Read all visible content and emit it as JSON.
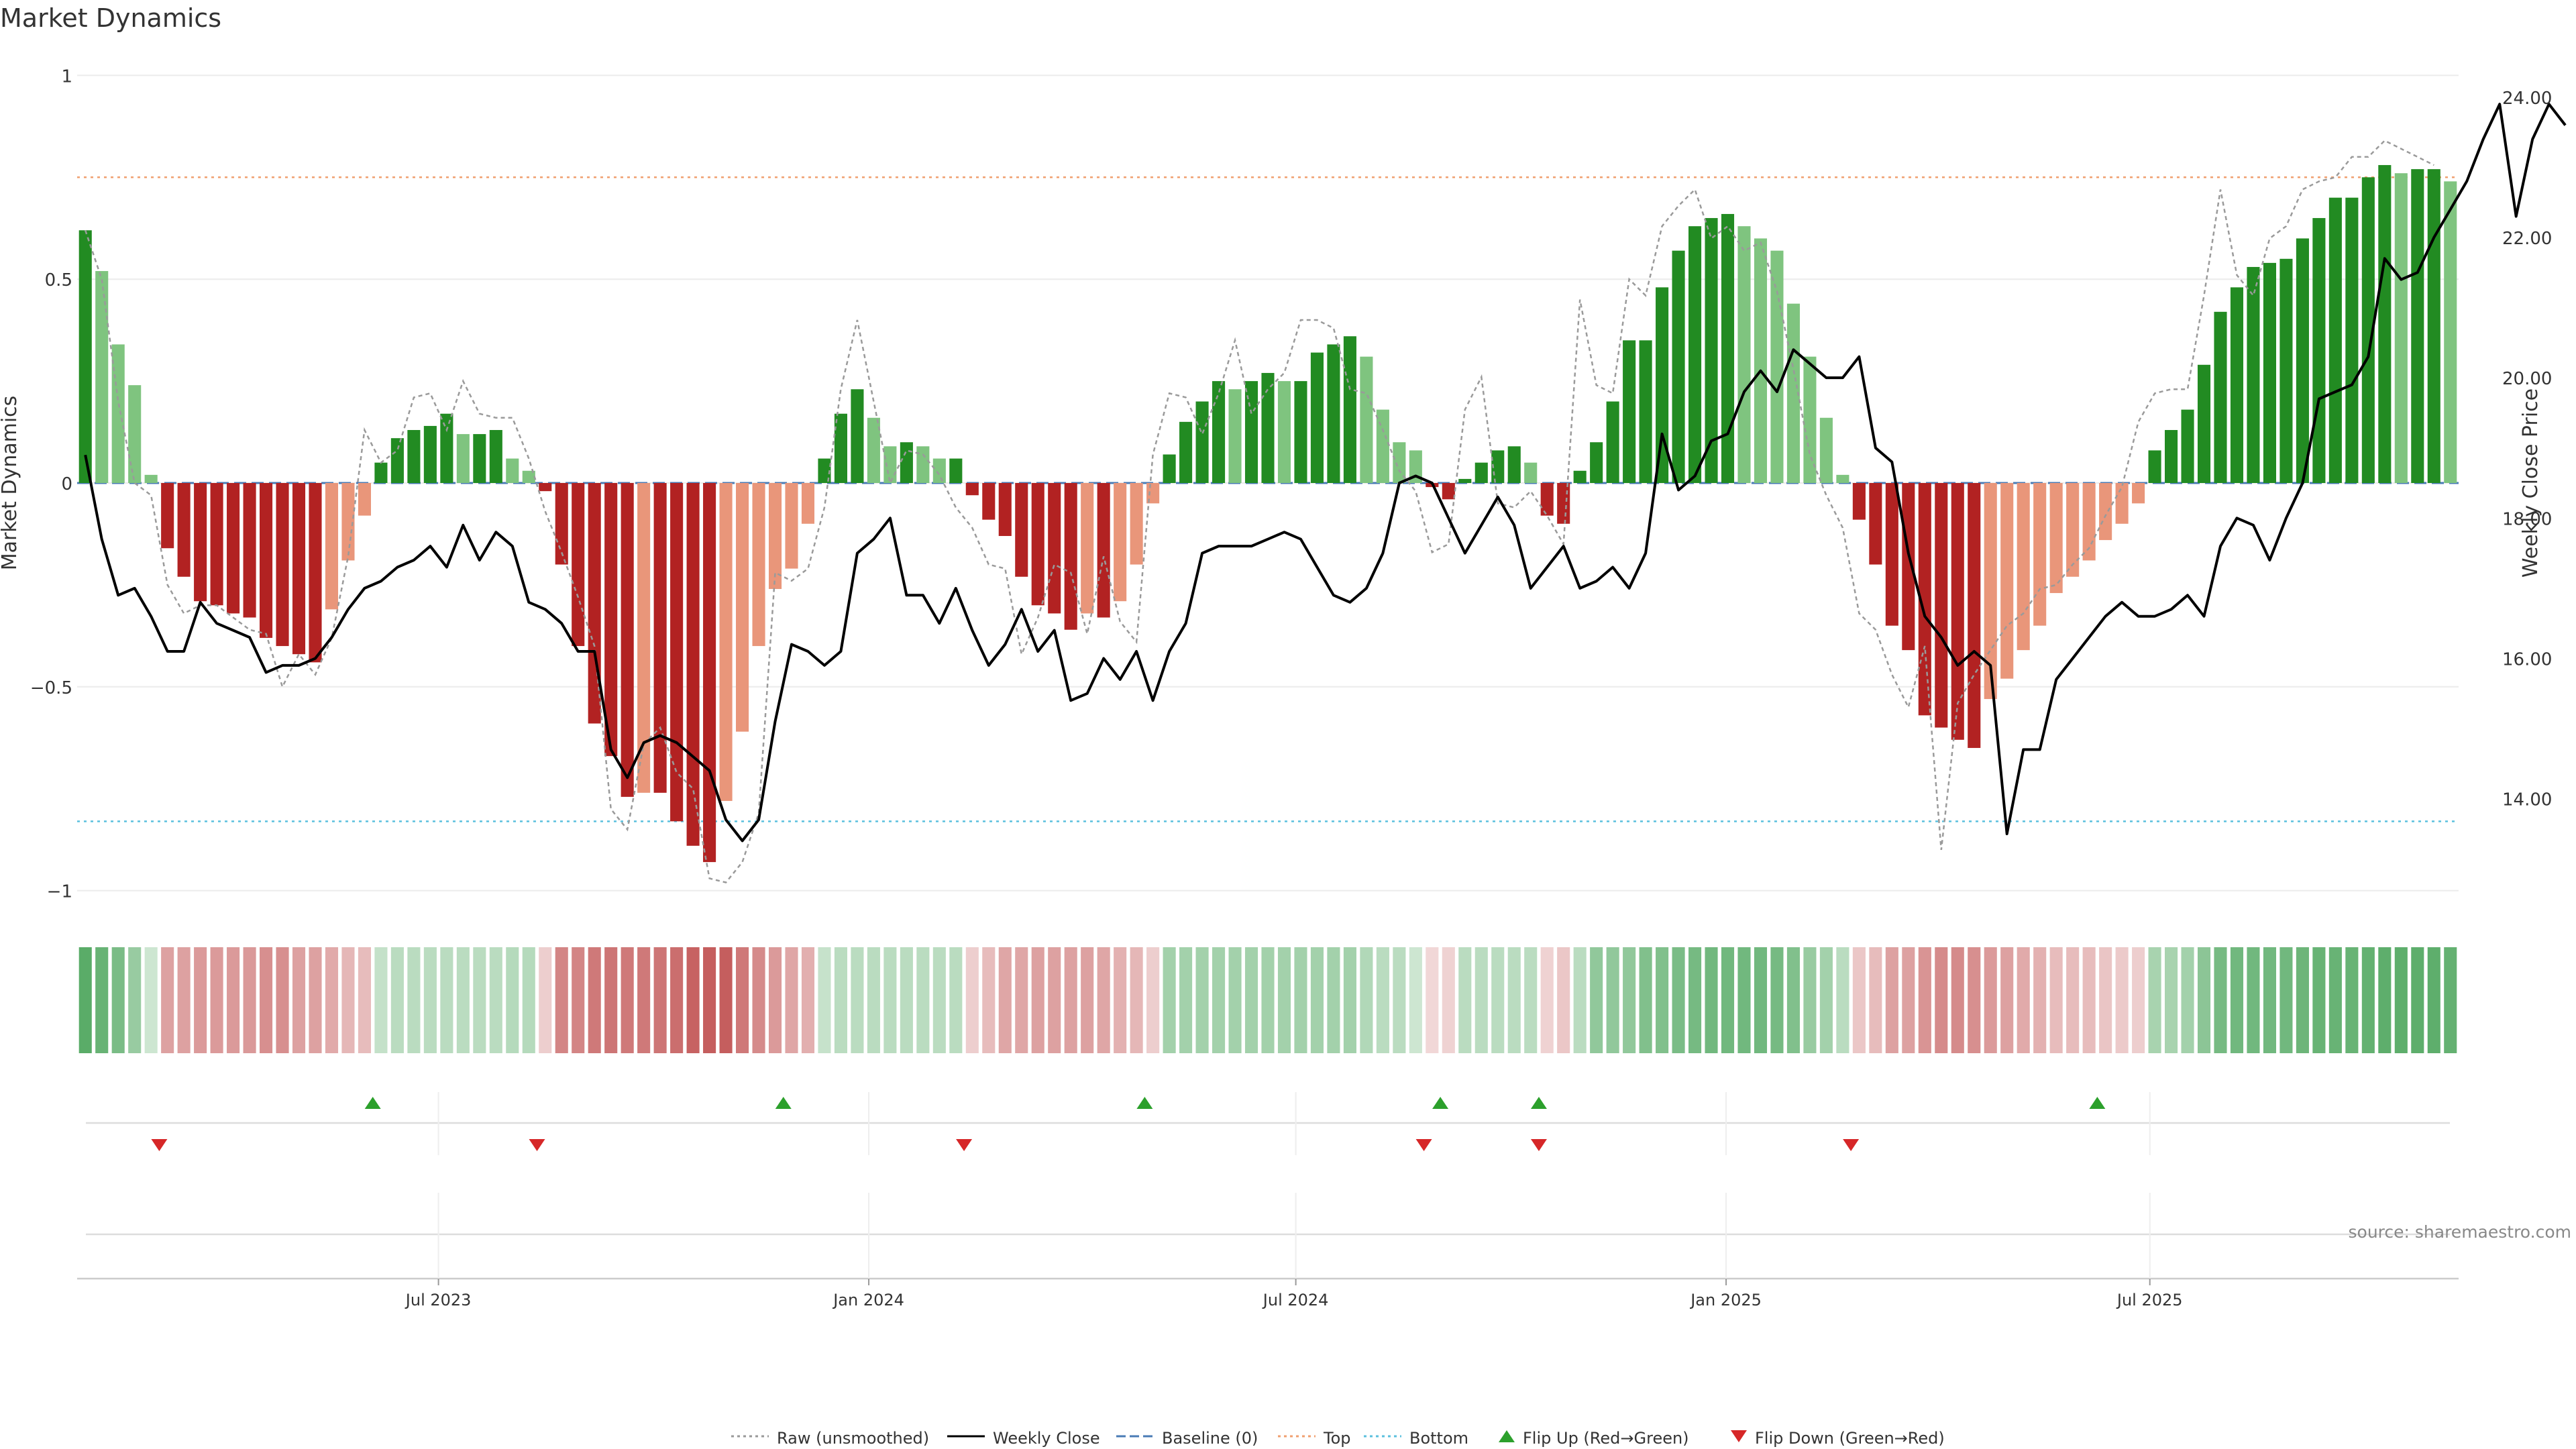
{
  "chart_data": {
    "type": "bar",
    "title": "Market Dynamics",
    "ylabel_left": "Market Dynamics",
    "ylabel_right": "Weekly Close Price",
    "left_ylim": [
      -1.05,
      1.05
    ],
    "right_ylim": [
      12.4,
      24.6
    ],
    "left_ticks": [
      "1",
      "0.5",
      "0",
      "−0.5",
      "−1"
    ],
    "left_tick_values": [
      1,
      0.5,
      0,
      -0.5,
      -1
    ],
    "right_ticks": [
      "24.00",
      "22.00",
      "20.00",
      "18.00",
      "16.00",
      "14.00"
    ],
    "right_tick_values": [
      24,
      22,
      20,
      18,
      16,
      14
    ],
    "x_ticks": [
      "Jul 2023",
      "Jan 2024",
      "Jul 2024",
      "Jan 2025",
      "Jul 2025"
    ],
    "x_tick_weeks": [
      21.5,
      47.7,
      73.7,
      99.9,
      125.7
    ],
    "baseline": 0,
    "top_level": 0.75,
    "bottom_level": -0.83,
    "bars": [
      0.62,
      0.52,
      0.34,
      0.24,
      0.02,
      -0.16,
      -0.23,
      -0.29,
      -0.3,
      -0.32,
      -0.33,
      -0.38,
      -0.4,
      -0.42,
      -0.44,
      -0.31,
      -0.19,
      -0.08,
      0.05,
      0.11,
      0.13,
      0.14,
      0.17,
      0.12,
      0.12,
      0.13,
      0.06,
      0.03,
      -0.02,
      -0.2,
      -0.4,
      -0.59,
      -0.67,
      -0.77,
      -0.76,
      -0.76,
      -0.83,
      -0.89,
      -0.93,
      -0.78,
      -0.61,
      -0.4,
      -0.26,
      -0.21,
      -0.1,
      0.06,
      0.17,
      0.23,
      0.16,
      0.09,
      0.1,
      0.09,
      0.06,
      0.06,
      -0.03,
      -0.09,
      -0.13,
      -0.23,
      -0.3,
      -0.32,
      -0.36,
      -0.32,
      -0.33,
      -0.29,
      -0.2,
      -0.05,
      0.07,
      0.15,
      0.2,
      0.25,
      0.23,
      0.25,
      0.27,
      0.25,
      0.25,
      0.32,
      0.34,
      0.36,
      0.31,
      0.18,
      0.1,
      0.08,
      -0.01,
      -0.04,
      0.01,
      0.05,
      0.08,
      0.09,
      0.05,
      -0.08,
      -0.1,
      0.03,
      0.1,
      0.2,
      0.35,
      0.35,
      0.48,
      0.57,
      0.63,
      0.65,
      0.66,
      0.63,
      0.6,
      0.57,
      0.44,
      0.31,
      0.16,
      0.02,
      -0.09,
      -0.2,
      -0.35,
      -0.41,
      -0.57,
      -0.6,
      -0.63,
      -0.65,
      -0.53,
      -0.48,
      -0.41,
      -0.35,
      -0.27,
      -0.23,
      -0.19,
      -0.14,
      -0.1,
      -0.05,
      0.08,
      0.13,
      0.18,
      0.29,
      0.42,
      0.48,
      0.53,
      0.54,
      0.55,
      0.6,
      0.65,
      0.7,
      0.7,
      0.75,
      0.78,
      0.76,
      0.77,
      0.77,
      0.74
    ],
    "raw": [
      0.62,
      0.5,
      0.2,
      0.0,
      -0.03,
      -0.25,
      -0.32,
      -0.3,
      -0.3,
      -0.33,
      -0.36,
      -0.37,
      -0.5,
      -0.42,
      -0.47,
      -0.38,
      -0.18,
      0.13,
      0.05,
      0.08,
      0.21,
      0.22,
      0.13,
      0.25,
      0.17,
      0.16,
      0.16,
      0.06,
      -0.07,
      -0.17,
      -0.28,
      -0.4,
      -0.8,
      -0.85,
      -0.64,
      -0.6,
      -0.71,
      -0.75,
      -0.97,
      -0.98,
      -0.93,
      -0.81,
      -0.22,
      -0.24,
      -0.21,
      -0.06,
      0.23,
      0.4,
      0.2,
      0.0,
      0.08,
      0.07,
      0.02,
      -0.06,
      -0.11,
      -0.2,
      -0.21,
      -0.42,
      -0.33,
      -0.2,
      -0.22,
      -0.37,
      -0.18,
      -0.34,
      -0.39,
      0.07,
      0.22,
      0.21,
      0.12,
      0.22,
      0.35,
      0.17,
      0.23,
      0.27,
      0.4,
      0.4,
      0.38,
      0.23,
      0.22,
      0.13,
      0.03,
      -0.02,
      -0.17,
      -0.15,
      0.18,
      0.26,
      -0.05,
      -0.06,
      -0.02,
      -0.08,
      -0.15,
      0.45,
      0.24,
      0.22,
      0.5,
      0.46,
      0.63,
      0.68,
      0.72,
      0.6,
      0.63,
      0.57,
      0.59,
      0.47,
      0.28,
      0.07,
      -0.03,
      -0.11,
      -0.32,
      -0.36,
      -0.47,
      -0.55,
      -0.4,
      -0.9,
      -0.54,
      -0.47,
      -0.41,
      -0.35,
      -0.32,
      -0.26,
      -0.25,
      -0.2,
      -0.16,
      -0.08,
      -0.01,
      0.15,
      0.22,
      0.23,
      0.23,
      0.46,
      0.72,
      0.51,
      0.46,
      0.6,
      0.63,
      0.72,
      0.74,
      0.75,
      0.8,
      0.8,
      0.84,
      0.82,
      0.8,
      0.78
    ],
    "close": [
      18.9,
      17.7,
      16.9,
      17.0,
      16.6,
      16.1,
      16.1,
      16.8,
      16.5,
      16.4,
      16.3,
      15.8,
      15.9,
      15.9,
      16.0,
      16.3,
      16.7,
      17.0,
      17.1,
      17.3,
      17.4,
      17.6,
      17.3,
      17.9,
      17.4,
      17.8,
      17.6,
      16.8,
      16.7,
      16.5,
      16.1,
      16.1,
      14.7,
      14.3,
      14.8,
      14.9,
      14.8,
      14.6,
      14.4,
      13.7,
      13.4,
      13.7,
      15.1,
      16.2,
      16.1,
      15.9,
      16.1,
      17.5,
      17.7,
      18.0,
      16.9,
      16.9,
      16.5,
      17.0,
      16.4,
      15.9,
      16.2,
      16.7,
      16.1,
      16.4,
      15.4,
      15.5,
      16.0,
      15.7,
      16.1,
      15.4,
      16.1,
      16.5,
      17.5,
      17.6,
      17.6,
      17.6,
      17.7,
      17.8,
      17.7,
      17.3,
      16.9,
      16.8,
      17.0,
      17.5,
      18.5,
      18.6,
      18.5,
      18.0,
      17.5,
      17.9,
      18.3,
      17.9,
      17.0,
      17.3,
      17.6,
      17.0,
      17.1,
      17.3,
      17.0,
      17.5,
      19.2,
      18.4,
      18.6,
      19.1,
      19.2,
      19.8,
      20.1,
      19.8,
      20.4,
      20.2,
      20.0,
      20.0,
      20.3,
      19.0,
      18.8,
      17.5,
      16.6,
      16.3,
      15.9,
      16.1,
      15.9,
      13.5,
      14.7,
      14.7,
      15.7,
      16.0,
      16.3,
      16.6,
      16.8,
      16.6,
      16.6,
      16.7,
      16.9,
      16.6,
      17.6,
      18.0,
      17.9,
      17.4,
      18.0,
      18.5,
      19.7,
      19.8,
      19.9,
      20.3,
      21.7,
      21.4,
      21.5,
      22.0,
      22.4,
      22.8,
      23.4,
      23.9,
      22.3,
      23.4,
      23.9,
      23.6
    ],
    "heat_strength": [
      0.72,
      0.66,
      0.58,
      0.45,
      0.22,
      0.42,
      0.42,
      0.45,
      0.45,
      0.45,
      0.46,
      0.5,
      0.5,
      0.42,
      0.42,
      0.38,
      0.32,
      0.3,
      0.26,
      0.3,
      0.3,
      0.3,
      0.3,
      0.3,
      0.3,
      0.3,
      0.32,
      0.32,
      0.22,
      0.55,
      0.55,
      0.6,
      0.62,
      0.6,
      0.6,
      0.62,
      0.65,
      0.7,
      0.72,
      0.72,
      0.6,
      0.52,
      0.45,
      0.4,
      0.36,
      0.25,
      0.3,
      0.3,
      0.3,
      0.3,
      0.3,
      0.3,
      0.3,
      0.3,
      0.22,
      0.3,
      0.4,
      0.4,
      0.42,
      0.42,
      0.42,
      0.42,
      0.4,
      0.35,
      0.32,
      0.22,
      0.4,
      0.4,
      0.4,
      0.4,
      0.4,
      0.4,
      0.4,
      0.4,
      0.4,
      0.4,
      0.4,
      0.4,
      0.34,
      0.3,
      0.3,
      0.22,
      0.18,
      0.2,
      0.3,
      0.3,
      0.3,
      0.3,
      0.3,
      0.2,
      0.25,
      0.3,
      0.48,
      0.48,
      0.48,
      0.55,
      0.55,
      0.58,
      0.6,
      0.62,
      0.62,
      0.62,
      0.62,
      0.6,
      0.55,
      0.45,
      0.4,
      0.3,
      0.25,
      0.3,
      0.42,
      0.42,
      0.48,
      0.52,
      0.52,
      0.5,
      0.45,
      0.42,
      0.38,
      0.35,
      0.3,
      0.3,
      0.3,
      0.26,
      0.24,
      0.22,
      0.38,
      0.38,
      0.4,
      0.5,
      0.6,
      0.62,
      0.62,
      0.62,
      0.62,
      0.64,
      0.66,
      0.66,
      0.66,
      0.68,
      0.7,
      0.7,
      0.7,
      0.7,
      0.68
    ],
    "flip_up_weeks": [
      17.5,
      42.5,
      64.5,
      82.5,
      88.5,
      122.5
    ],
    "flip_down_weeks": [
      4.5,
      27.5,
      53.5,
      81.5,
      88.5,
      107.5
    ],
    "legend": [
      {
        "label": "Raw (unsmoothed)",
        "kind": "dotted",
        "color": "#999999"
      },
      {
        "label": "Weekly Close",
        "kind": "line",
        "color": "#000000"
      },
      {
        "label": "Baseline (0)",
        "kind": "dashed",
        "color": "#4a7bb5"
      },
      {
        "label": "Top",
        "kind": "dotted",
        "color": "#f0a070"
      },
      {
        "label": "Bottom",
        "kind": "dotted",
        "color": "#5bc0de"
      },
      {
        "label": "Flip Up (Red→Green)",
        "kind": "triangle-up",
        "color": "#2ca02c"
      },
      {
        "label": "Flip Down (Green→Red)",
        "kind": "triangle-down",
        "color": "#d62728"
      }
    ],
    "source_note": "source: sharemaestro.com"
  },
  "colors": {
    "green_dark": "#228b22",
    "green_light": "#7fc47f",
    "red_dark": "#b22222",
    "red_light": "#e9967a",
    "top_line": "#f0a070",
    "bottom_line": "#5bc0de",
    "baseline": "#4a7bb5"
  }
}
